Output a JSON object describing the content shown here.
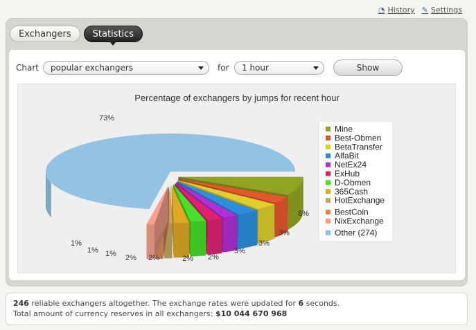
{
  "top_links": {
    "history": "History",
    "settings": "Settings"
  },
  "tabs": [
    {
      "label": "Exchangers"
    },
    {
      "label": "Statistics"
    }
  ],
  "controls": {
    "chart_label": "Chart",
    "chart_select": "popular exchangers",
    "for_label": "for",
    "period_select": "1 hour",
    "show_button": "Show"
  },
  "chart_data": {
    "type": "pie",
    "title": "Percentage of exchangers by jumps for recent hour",
    "legend_position": "right",
    "slices": [
      {
        "name": "Mine",
        "value": 8,
        "label": "8%",
        "color": "#8fa520"
      },
      {
        "name": "Best-Obmen",
        "value": 3,
        "label": "3%",
        "color": "#e4572e"
      },
      {
        "name": "BetaTransfer",
        "value": 3,
        "label": "3%",
        "color": "#e0cf2a"
      },
      {
        "name": "AlfaBit",
        "value": 3,
        "label": "3%",
        "color": "#2b8fe0"
      },
      {
        "name": "NetEx24",
        "value": 2,
        "label": "2%",
        "color": "#b02fd6"
      },
      {
        "name": "ExHub",
        "value": 2,
        "label": "2%",
        "color": "#e0226e"
      },
      {
        "name": "D-Obmen",
        "value": 2,
        "label": "2%",
        "color": "#47e02a"
      },
      {
        "name": "365Cash",
        "value": 2,
        "label": "2%",
        "color": "#e0a824"
      },
      {
        "name": "HotExchange",
        "value": 1,
        "label": "1%",
        "color": "#c4a660"
      },
      {
        "name": "BestCoin",
        "value": 1,
        "label": "1%",
        "color": "#d98757"
      },
      {
        "name": "NixExchange",
        "value": 1,
        "label": "1%",
        "color": "#f6a08d"
      },
      {
        "name": "Other (274)",
        "value": 73,
        "label": "73%",
        "color": "#93c3e3"
      }
    ]
  },
  "footer": {
    "count": "246",
    "line1_text": " reliable exchangers altogether. The exchange rates were updated for ",
    "seconds": "6",
    "line1_end": " seconds.",
    "line2_text": "Total amount of currency reserves in all exchangers: ",
    "reserves": "$10 044 670 968"
  }
}
